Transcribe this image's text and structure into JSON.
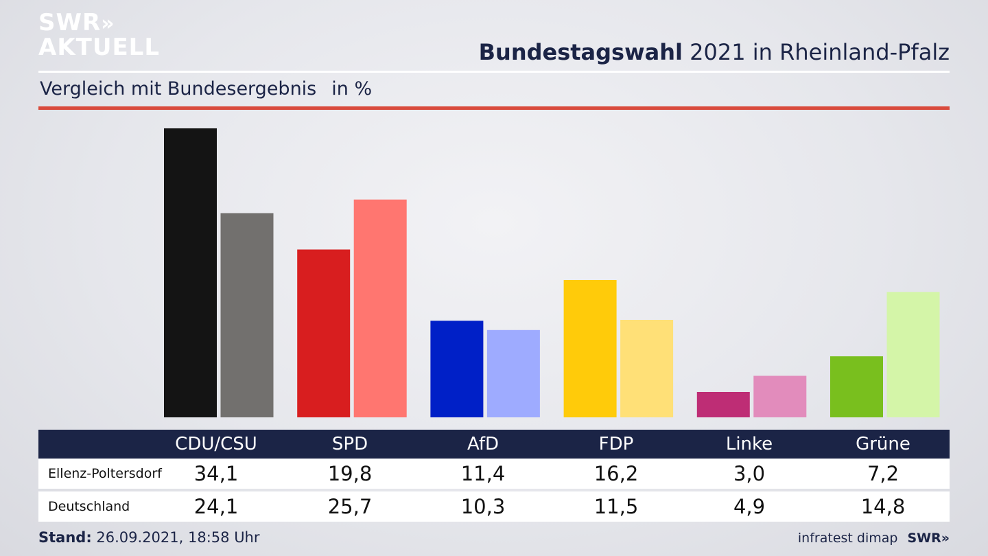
{
  "logo": {
    "line1": "SWR",
    "chevrons": "»",
    "line2": "AKTUELL"
  },
  "header": {
    "title_bold": "Bundestagswahl",
    "title_rest": "2021 in Rheinland-Pfalz"
  },
  "subheader": {
    "text": "Vergleich mit Bundesergebnis",
    "unit": "in %"
  },
  "footer": {
    "stand_label": "Stand:",
    "stand_value": "26.09.2021, 18:58 Uhr",
    "source": "infratest dimap",
    "brand": "SWR»"
  },
  "table": {
    "headers": [
      "CDU/CSU",
      "SPD",
      "AfD",
      "FDP",
      "Linke",
      "Grüne"
    ],
    "rows": [
      {
        "label": "Ellenz-Poltersdorf",
        "values": [
          "34,1",
          "19,8",
          "11,4",
          "16,2",
          "3,0",
          "7,2"
        ]
      },
      {
        "label": "Deutschland",
        "values": [
          "24,1",
          "25,7",
          "10,3",
          "11,5",
          "4,9",
          "14,8"
        ]
      }
    ]
  },
  "chart_data": {
    "type": "bar",
    "categories": [
      "CDU/CSU",
      "SPD",
      "AfD",
      "FDP",
      "Linke",
      "Grüne"
    ],
    "series": [
      {
        "name": "Ellenz-Poltersdorf",
        "values": [
          34.1,
          19.8,
          11.4,
          16.2,
          3.0,
          7.2
        ]
      },
      {
        "name": "Deutschland",
        "values": [
          24.1,
          25.7,
          10.3,
          11.5,
          4.9,
          14.8
        ]
      }
    ],
    "colors": [
      [
        "#141414",
        "#72706e"
      ],
      [
        "#d81e1f",
        "#ff7670"
      ],
      [
        "#0020c7",
        "#9eabff"
      ],
      [
        "#ffcb0a",
        "#ffe077"
      ],
      [
        "#be2d75",
        "#e28cbc"
      ],
      [
        "#79bf1e",
        "#d4f5a8"
      ]
    ],
    "title": "Bundestagswahl 2021 in Rheinland-Pfalz",
    "subtitle": "Vergleich mit Bundesergebnis",
    "ylabel": "in %",
    "ylim": [
      0,
      34.1
    ],
    "grid": false,
    "legend": "none"
  }
}
